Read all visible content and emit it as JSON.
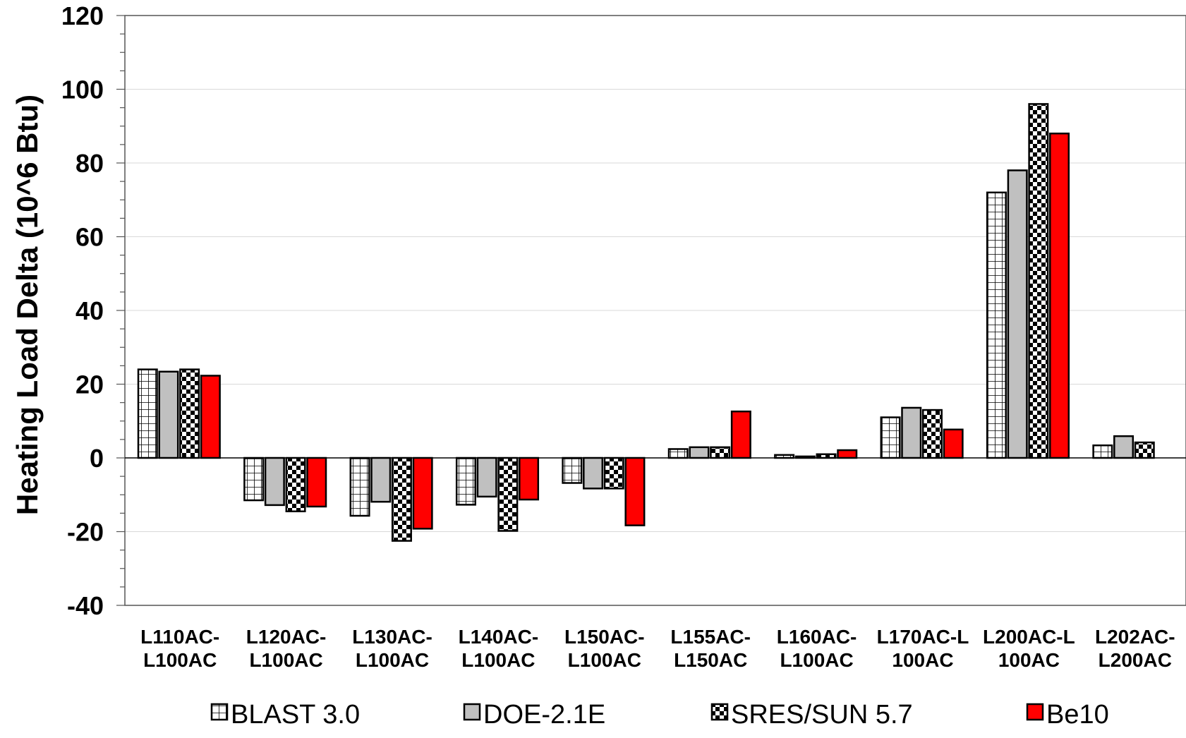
{
  "chart_data": {
    "type": "bar",
    "title": "",
    "xlabel": "",
    "ylabel": "Heating Load Delta (10^6 Btu)",
    "ylim": [
      -40,
      120
    ],
    "y_major_ticks": [
      -40,
      -20,
      0,
      20,
      40,
      60,
      80,
      100,
      120
    ],
    "y_minor_step": 5,
    "grid": true,
    "legend_position": "bottom",
    "categories": [
      [
        "L110AC-",
        "L100AC"
      ],
      [
        "L120AC-",
        "L100AC"
      ],
      [
        "L130AC-",
        "L100AC"
      ],
      [
        "L140AC-",
        "L100AC"
      ],
      [
        "L150AC-",
        "L100AC"
      ],
      [
        "L155AC-",
        "L150AC"
      ],
      [
        "L160AC-",
        "L100AC"
      ],
      [
        "L170AC-L",
        "100AC"
      ],
      [
        "L200AC-L",
        "100AC"
      ],
      [
        "L202AC-",
        "L200AC"
      ]
    ],
    "series": [
      {
        "name": "BLAST 3.0",
        "pattern": "grid",
        "color": "#ffffff",
        "values": [
          24,
          -11.5,
          -15.7,
          -12.7,
          -6.8,
          2.4,
          0.8,
          11.0,
          72.0,
          3.4
        ]
      },
      {
        "name": "DOE-2.1E",
        "pattern": "solid",
        "color": "#c0c0c0",
        "values": [
          23.4,
          -12.8,
          -11.9,
          -10.5,
          -8.3,
          2.9,
          0.4,
          13.6,
          78.0,
          5.9
        ]
      },
      {
        "name": "SRES/SUN 5.7",
        "pattern": "checker",
        "color": "#ffffff",
        "values": [
          24.0,
          -14.5,
          -22.5,
          -19.8,
          -8.3,
          2.9,
          1.0,
          13.0,
          96.0,
          4.2
        ]
      },
      {
        "name": "Be10",
        "pattern": "solid",
        "color": "#ff0000",
        "values": [
          22.3,
          -13.2,
          -19.2,
          -11.3,
          -18.3,
          12.6,
          2.1,
          7.7,
          88.0,
          null
        ]
      }
    ]
  }
}
